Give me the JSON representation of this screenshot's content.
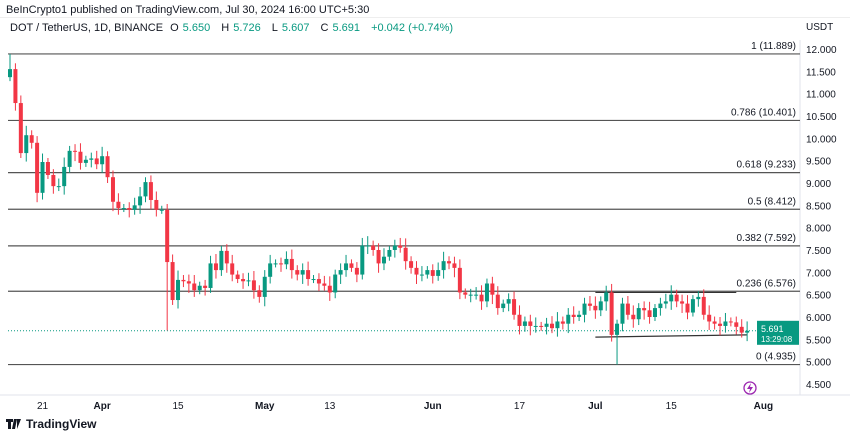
{
  "published": "BeInCrypto1 published on TradingView.com, Jul 30, 2024 16:00 UTC+5:30",
  "header": {
    "symbol": "DOT / TetherUS, 1D, BINANCE",
    "o_label": "O",
    "o": "5.650",
    "h_label": "H",
    "h": "5.726",
    "l_label": "L",
    "l": "5.607",
    "c_label": "C",
    "c": "5.691",
    "change": "+0.042 (+0.74%)"
  },
  "currency": "USDT",
  "price_tag": {
    "price": "5.691",
    "countdown": "13:29:08"
  },
  "footer_logo": "TradingView",
  "colors": {
    "up": "#089981",
    "down": "#f23645",
    "fib_line": "#555555",
    "icon": "#9c27b0"
  },
  "icons": {
    "lightning": "lightning-icon",
    "logo": "tradingview-logo-icon"
  },
  "chart_data": {
    "type": "candlestick",
    "start_date": "2024-03-15",
    "first_open": 11.37,
    "close": [
      11.55,
      10.79,
      9.67,
      10.07,
      9.9,
      8.78,
      9.47,
      9.18,
      8.93,
      8.93,
      9.36,
      9.72,
      9.7,
      9.45,
      9.52,
      9.55,
      9.42,
      9.6,
      9.13,
      8.58,
      8.44,
      8.44,
      8.4,
      8.5,
      8.7,
      9.02,
      8.62,
      8.4,
      8.4,
      7.23,
      6.38,
      6.83,
      6.8,
      6.75,
      6.6,
      6.7,
      6.65,
      7.2,
      7.05,
      7.48,
      7.2,
      6.95,
      6.85,
      6.8,
      6.82,
      6.6,
      6.45,
      6.9,
      7.2,
      7.2,
      7.18,
      7.3,
      7.05,
      6.95,
      7.05,
      6.85,
      6.85,
      6.75,
      6.7,
      6.55,
      6.95,
      7.05,
      7.2,
      7.1,
      6.95,
      7.6,
      7.6,
      7.5,
      7.2,
      7.35,
      7.5,
      7.6,
      7.55,
      7.25,
      7.1,
      6.95,
      6.95,
      7.05,
      6.92,
      7.05,
      7.25,
      7.2,
      7.1,
      6.55,
      6.5,
      6.5,
      6.5,
      6.35,
      6.75,
      6.5,
      6.2,
      6.3,
      6.4,
      6.05,
      5.8,
      5.9,
      5.8,
      5.8,
      5.78,
      5.85,
      5.75,
      5.9,
      5.85,
      6.05,
      6.0,
      6.05,
      6.3,
      6.25,
      6.15,
      6.35,
      6.55,
      5.6,
      5.85,
      6.3,
      6.05,
      5.95,
      6.2,
      6.15,
      6.0,
      6.2,
      6.3,
      6.35,
      6.5,
      6.35,
      6.3,
      6.1,
      6.4,
      6.45,
      6.05,
      5.9,
      5.85,
      5.8,
      5.9,
      5.88,
      5.78,
      5.65,
      5.691
    ],
    "notable_wicks": [
      {
        "index": 0,
        "high": 11.889
      },
      {
        "index": 29,
        "low": 5.7
      },
      {
        "index": 112,
        "low": 4.935
      },
      {
        "index": 137,
        "high": 5.726,
        "low": 5.607
      }
    ],
    "y_ticks": [
      "12.000",
      "11.500",
      "11.000",
      "10.500",
      "10.000",
      "9.500",
      "9.000",
      "8.500",
      "8.000",
      "7.500",
      "7.000",
      "6.500",
      "6.000",
      "5.500",
      "5.000",
      "4.500"
    ],
    "ylim": [
      4.5,
      12.0
    ],
    "x_ticks": [
      {
        "label": "21",
        "index": 6
      },
      {
        "label": "Apr",
        "index": 17
      },
      {
        "label": "15",
        "index": 31
      },
      {
        "label": "May",
        "index": 47
      },
      {
        "label": "13",
        "index": 59
      },
      {
        "label": "Jun",
        "index": 78
      },
      {
        "label": "17",
        "index": 94
      },
      {
        "label": "Jul",
        "index": 108
      },
      {
        "label": "15",
        "index": 122
      },
      {
        "label": "Aug",
        "index": 139
      }
    ],
    "fib_levels": [
      {
        "label": "1 (11.889)",
        "value": 11.889
      },
      {
        "label": "0.786 (10.401)",
        "value": 10.401
      },
      {
        "label": "0.618 (9.233)",
        "value": 9.233
      },
      {
        "label": "0.5 (8.412)",
        "value": 8.412
      },
      {
        "label": "0.382 (7.592)",
        "value": 7.592
      },
      {
        "label": "0.236 (6.576)",
        "value": 6.576
      },
      {
        "label": "0 (4.935)",
        "value": 4.935
      }
    ],
    "channel": [
      {
        "from_index": 108,
        "to_index": 134,
        "y1": 6.55,
        "y2": 6.55
      },
      {
        "from_index": 108,
        "to_index": 136,
        "y1": 5.55,
        "y2": 5.6
      }
    ],
    "current_price": 5.691,
    "grid": false
  }
}
